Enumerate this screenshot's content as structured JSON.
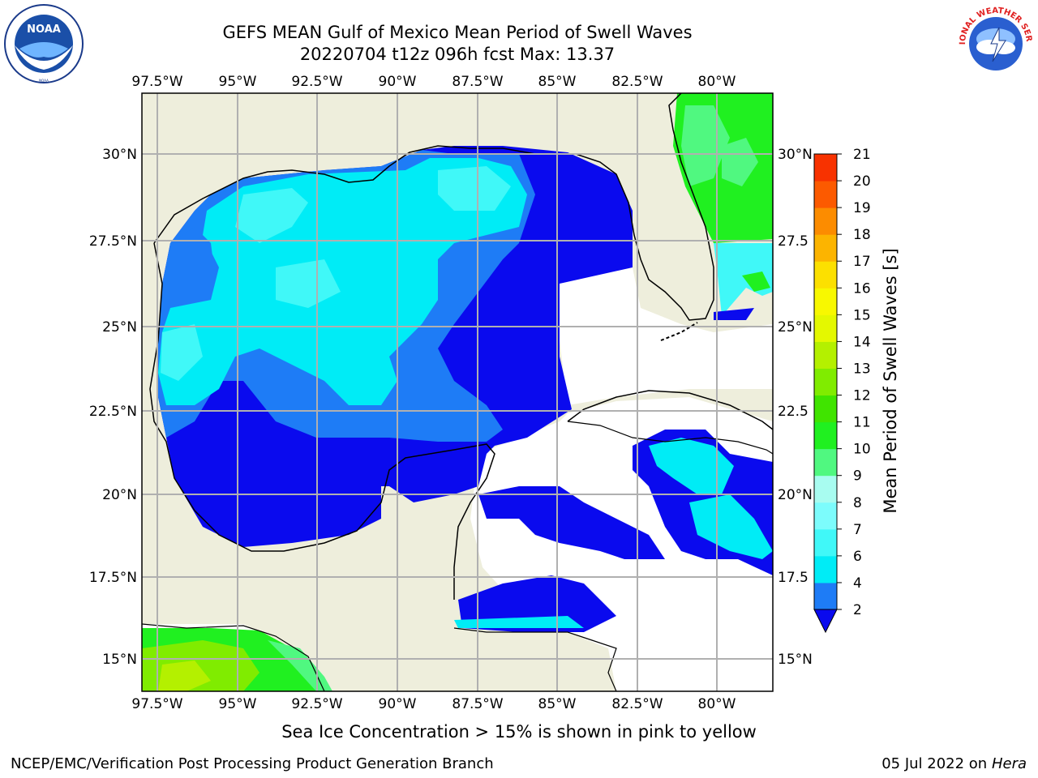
{
  "header": {
    "title_line1": "GEFS MEAN Gulf of Mexico Mean Period of Swell Waves",
    "title_line2": "20220704 t12z 096h fcst   Max: 13.37"
  },
  "logos": {
    "left": "NOAA",
    "left_ring_text": "NATIONAL OCEANIC AND ATMOSPHERIC ADMINISTRATION · U.S. DEPARTMENT OF COMMERCE",
    "right_ring_text": "NATIONAL WEATHER SERVICE"
  },
  "map": {
    "lon_labels": [
      "97.5°W",
      "95°W",
      "92.5°W",
      "90°W",
      "87.5°W",
      "85°W",
      "82.5°W",
      "80°W"
    ],
    "lat_labels_left": [
      "30°N",
      "27.5°N",
      "25°N",
      "22.5°N",
      "20°N",
      "17.5°N",
      "15°N"
    ],
    "lat_labels_right": [
      "30°N",
      "27.5",
      "25°N",
      "22.5",
      "20°N",
      "17.5",
      "15°N"
    ],
    "colors": {
      "land": "#eeeedc",
      "grid": "#b0b0b0"
    }
  },
  "colorbar": {
    "label": "Mean Period of Swell Waves [s]",
    "ticks": [
      "2",
      "4",
      "6",
      "7",
      "8",
      "9",
      "10",
      "11",
      "12",
      "13",
      "14",
      "15",
      "16",
      "17",
      "18",
      "19",
      "20",
      "21"
    ],
    "colors": [
      "#0a0aee",
      "#1e7cf6",
      "#00ecf6",
      "#40f8f8",
      "#7cfcfc",
      "#a8fcf0",
      "#50f880",
      "#20f020",
      "#40e400",
      "#80ec00",
      "#b4f000",
      "#e4f800",
      "#f8f800",
      "#fce000",
      "#fcb400",
      "#fc8c00",
      "#fc5a00",
      "#f83200",
      "#f00000"
    ]
  },
  "footer": {
    "note": "Sea Ice Concentration > 15% is shown in pink to yellow",
    "left": "NCEP/EMC/Verification Post Processing Product Generation Branch",
    "right_date": "05 Jul 2022 on ",
    "right_host": "Hera"
  }
}
